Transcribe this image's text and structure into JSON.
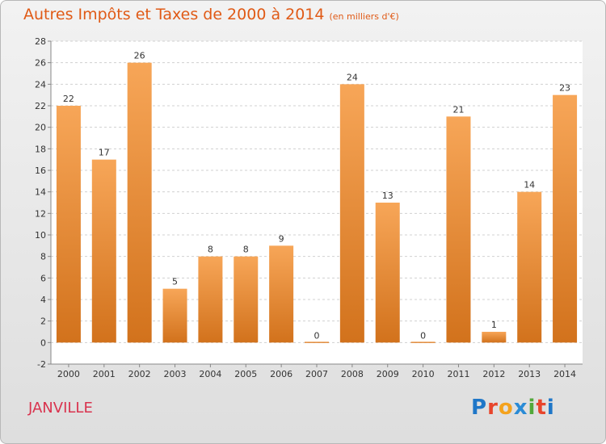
{
  "title": "Autres Impôts et Taxes de 2000 à 2014",
  "subtitle": "(en milliers d'€)",
  "city": "JANVILLE",
  "logo": {
    "letters": [
      "P",
      "r",
      "o",
      "x",
      "i",
      "t",
      "i"
    ],
    "colors": [
      "#1f77c8",
      "#e8452c",
      "#f4a21d",
      "#2a8bd6",
      "#52a83a",
      "#e8452c",
      "#1f77c8"
    ]
  },
  "colors": {
    "bar_light": "#f7a658",
    "bar_dark": "#d2721c",
    "title": "#e05a16",
    "city": "#d9334e"
  },
  "chart_data": {
    "type": "bar",
    "title": "Autres Impôts et Taxes de 2000 à 2014",
    "subtitle": "(en milliers d'€)",
    "categories": [
      "2000",
      "2001",
      "2002",
      "2003",
      "2004",
      "2005",
      "2006",
      "2007",
      "2008",
      "2009",
      "2010",
      "2011",
      "2012",
      "2013",
      "2014"
    ],
    "values": [
      22,
      17,
      26,
      5,
      8,
      8,
      9,
      0,
      24,
      13,
      0,
      21,
      1,
      14,
      23
    ],
    "ylim": [
      -2,
      28
    ],
    "yticks": [
      -2,
      0,
      2,
      4,
      6,
      8,
      10,
      12,
      14,
      16,
      18,
      20,
      22,
      24,
      26,
      28
    ],
    "grid": true
  }
}
